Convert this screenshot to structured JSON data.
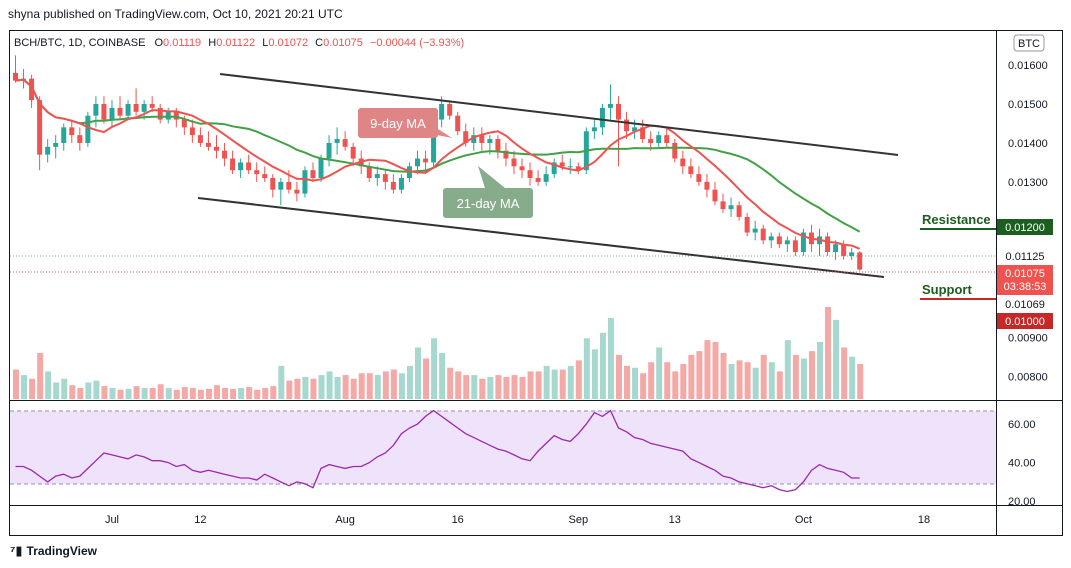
{
  "header": {
    "credit": "shyna published on TradingView.com, Oct 10, 2021 20:21 UTC"
  },
  "legend": {
    "symbol": "BCH/BTC, 1D, COINBASE",
    "open_label": "O",
    "open": "0.01119",
    "high_label": "H",
    "high": "0.01122",
    "low_label": "L",
    "low": "0.01072",
    "close_label": "C",
    "close": "0.01075",
    "change": "−0.00044 (−3.93%)"
  },
  "currency_badge": "BTC",
  "annotations": {
    "ma9": "9-day MA",
    "ma21": "21-day MA",
    "resistance": "Resistance",
    "support": "Support"
  },
  "price_labels": {
    "resistance": "0.01200",
    "ma_value": "0.01125",
    "last_price": "0.01075",
    "countdown": "03:38:53",
    "ma_value2": "0.01069",
    "support": "0.01000"
  },
  "footer": {
    "brand": "TradingView"
  },
  "colors": {
    "up": "#26a69a",
    "down": "#ef5350",
    "ma9": "#ef5350",
    "ma21": "#43a047",
    "trend": "#333333",
    "rsi": "#9c27b0",
    "rsi_band": "#ede1f7",
    "resistance": "#1b5e20",
    "support": "#c62828"
  },
  "chart_data": {
    "type": "candlestick",
    "title": "BCH/BTC, 1D, COINBASE",
    "x_tick_labels": [
      "Jul",
      "12",
      "Aug",
      "16",
      "Sep",
      "13",
      "Oct",
      "18"
    ],
    "y_tick_labels": [
      "0.01600",
      "0.01500",
      "0.01400",
      "0.01300",
      "0.00900",
      "0.00800"
    ],
    "ylim": [
      0.0074,
      0.0169
    ],
    "rsi_tick_labels": [
      "60.00",
      "40.00",
      "20.00"
    ],
    "rsi_lim": [
      18,
      72
    ],
    "rsi_bands": [
      70,
      30
    ],
    "candles": [
      {
        "o": 0.0158,
        "h": 0.01625,
        "l": 0.01555,
        "c": 0.0156
      },
      {
        "o": 0.0156,
        "h": 0.0159,
        "l": 0.0154,
        "c": 0.01565
      },
      {
        "o": 0.01565,
        "h": 0.01575,
        "l": 0.0149,
        "c": 0.0151
      },
      {
        "o": 0.0151,
        "h": 0.0152,
        "l": 0.0133,
        "c": 0.0137
      },
      {
        "o": 0.0137,
        "h": 0.0141,
        "l": 0.0135,
        "c": 0.0139
      },
      {
        "o": 0.0139,
        "h": 0.0142,
        "l": 0.0136,
        "c": 0.014
      },
      {
        "o": 0.014,
        "h": 0.0145,
        "l": 0.0138,
        "c": 0.0144
      },
      {
        "o": 0.0144,
        "h": 0.0146,
        "l": 0.014,
        "c": 0.0142
      },
      {
        "o": 0.0142,
        "h": 0.0144,
        "l": 0.0138,
        "c": 0.014
      },
      {
        "o": 0.014,
        "h": 0.0148,
        "l": 0.0139,
        "c": 0.0147
      },
      {
        "o": 0.0147,
        "h": 0.0152,
        "l": 0.0144,
        "c": 0.015
      },
      {
        "o": 0.015,
        "h": 0.0152,
        "l": 0.0145,
        "c": 0.0146
      },
      {
        "o": 0.0146,
        "h": 0.0151,
        "l": 0.0144,
        "c": 0.0149
      },
      {
        "o": 0.0149,
        "h": 0.0152,
        "l": 0.0146,
        "c": 0.0147
      },
      {
        "o": 0.0147,
        "h": 0.0151,
        "l": 0.0146,
        "c": 0.015
      },
      {
        "o": 0.015,
        "h": 0.0154,
        "l": 0.0147,
        "c": 0.0148
      },
      {
        "o": 0.0148,
        "h": 0.0151,
        "l": 0.0146,
        "c": 0.015
      },
      {
        "o": 0.015,
        "h": 0.0152,
        "l": 0.0148,
        "c": 0.0149
      },
      {
        "o": 0.0149,
        "h": 0.015,
        "l": 0.0145,
        "c": 0.0146
      },
      {
        "o": 0.0146,
        "h": 0.0149,
        "l": 0.0145,
        "c": 0.0148
      },
      {
        "o": 0.0148,
        "h": 0.0149,
        "l": 0.0144,
        "c": 0.0146
      },
      {
        "o": 0.0146,
        "h": 0.0147,
        "l": 0.0142,
        "c": 0.0144
      },
      {
        "o": 0.0144,
        "h": 0.0146,
        "l": 0.014,
        "c": 0.0142
      },
      {
        "o": 0.0142,
        "h": 0.0144,
        "l": 0.0139,
        "c": 0.014
      },
      {
        "o": 0.014,
        "h": 0.0143,
        "l": 0.0138,
        "c": 0.0139
      },
      {
        "o": 0.0139,
        "h": 0.0142,
        "l": 0.0136,
        "c": 0.0138
      },
      {
        "o": 0.0138,
        "h": 0.014,
        "l": 0.0134,
        "c": 0.0136
      },
      {
        "o": 0.0136,
        "h": 0.0138,
        "l": 0.0132,
        "c": 0.0133
      },
      {
        "o": 0.0133,
        "h": 0.0136,
        "l": 0.0131,
        "c": 0.0135
      },
      {
        "o": 0.0135,
        "h": 0.0137,
        "l": 0.0132,
        "c": 0.0133
      },
      {
        "o": 0.0133,
        "h": 0.0135,
        "l": 0.013,
        "c": 0.0132
      },
      {
        "o": 0.0132,
        "h": 0.0134,
        "l": 0.013,
        "c": 0.0131
      },
      {
        "o": 0.0131,
        "h": 0.0132,
        "l": 0.0126,
        "c": 0.0128
      },
      {
        "o": 0.0128,
        "h": 0.0131,
        "l": 0.0124,
        "c": 0.013
      },
      {
        "o": 0.013,
        "h": 0.0133,
        "l": 0.0127,
        "c": 0.0128
      },
      {
        "o": 0.0128,
        "h": 0.013,
        "l": 0.0125,
        "c": 0.0127
      },
      {
        "o": 0.0127,
        "h": 0.0134,
        "l": 0.0126,
        "c": 0.0133
      },
      {
        "o": 0.0133,
        "h": 0.0135,
        "l": 0.013,
        "c": 0.0131
      },
      {
        "o": 0.0131,
        "h": 0.0137,
        "l": 0.013,
        "c": 0.0136
      },
      {
        "o": 0.0136,
        "h": 0.0142,
        "l": 0.0134,
        "c": 0.014
      },
      {
        "o": 0.014,
        "h": 0.0144,
        "l": 0.0137,
        "c": 0.0141
      },
      {
        "o": 0.0141,
        "h": 0.0143,
        "l": 0.0138,
        "c": 0.0139
      },
      {
        "o": 0.0139,
        "h": 0.014,
        "l": 0.0134,
        "c": 0.0136
      },
      {
        "o": 0.0136,
        "h": 0.0138,
        "l": 0.0132,
        "c": 0.0134
      },
      {
        "o": 0.0134,
        "h": 0.0135,
        "l": 0.013,
        "c": 0.0131
      },
      {
        "o": 0.0131,
        "h": 0.0134,
        "l": 0.0129,
        "c": 0.0132
      },
      {
        "o": 0.0132,
        "h": 0.0133,
        "l": 0.0128,
        "c": 0.013
      },
      {
        "o": 0.013,
        "h": 0.0132,
        "l": 0.0127,
        "c": 0.0128
      },
      {
        "o": 0.0128,
        "h": 0.0132,
        "l": 0.0127,
        "c": 0.0131
      },
      {
        "o": 0.0131,
        "h": 0.0135,
        "l": 0.013,
        "c": 0.0134
      },
      {
        "o": 0.0134,
        "h": 0.0138,
        "l": 0.0132,
        "c": 0.0136
      },
      {
        "o": 0.0136,
        "h": 0.0138,
        "l": 0.0133,
        "c": 0.0135
      },
      {
        "o": 0.0135,
        "h": 0.0147,
        "l": 0.0134,
        "c": 0.0146
      },
      {
        "o": 0.0146,
        "h": 0.0152,
        "l": 0.0144,
        "c": 0.015
      },
      {
        "o": 0.015,
        "h": 0.0151,
        "l": 0.0146,
        "c": 0.0147
      },
      {
        "o": 0.0147,
        "h": 0.0148,
        "l": 0.0142,
        "c": 0.0143
      },
      {
        "o": 0.0143,
        "h": 0.0145,
        "l": 0.0139,
        "c": 0.014
      },
      {
        "o": 0.014,
        "h": 0.0144,
        "l": 0.0138,
        "c": 0.0142
      },
      {
        "o": 0.0142,
        "h": 0.0144,
        "l": 0.0138,
        "c": 0.014
      },
      {
        "o": 0.014,
        "h": 0.0142,
        "l": 0.0137,
        "c": 0.0141
      },
      {
        "o": 0.0141,
        "h": 0.0142,
        "l": 0.0136,
        "c": 0.0138
      },
      {
        "o": 0.0138,
        "h": 0.014,
        "l": 0.0134,
        "c": 0.0136
      },
      {
        "o": 0.0136,
        "h": 0.0138,
        "l": 0.0132,
        "c": 0.0134
      },
      {
        "o": 0.0134,
        "h": 0.0136,
        "l": 0.0131,
        "c": 0.0133
      },
      {
        "o": 0.0133,
        "h": 0.0135,
        "l": 0.0129,
        "c": 0.0131
      },
      {
        "o": 0.0131,
        "h": 0.0133,
        "l": 0.0129,
        "c": 0.013
      },
      {
        "o": 0.013,
        "h": 0.0134,
        "l": 0.0129,
        "c": 0.0132
      },
      {
        "o": 0.0132,
        "h": 0.0136,
        "l": 0.0131,
        "c": 0.0135
      },
      {
        "o": 0.0135,
        "h": 0.0137,
        "l": 0.0133,
        "c": 0.0134
      },
      {
        "o": 0.0134,
        "h": 0.0136,
        "l": 0.0132,
        "c": 0.0134
      },
      {
        "o": 0.0134,
        "h": 0.0135,
        "l": 0.0132,
        "c": 0.0133
      },
      {
        "o": 0.0133,
        "h": 0.0144,
        "l": 0.0132,
        "c": 0.0143
      },
      {
        "o": 0.0143,
        "h": 0.0146,
        "l": 0.0141,
        "c": 0.0144
      },
      {
        "o": 0.0144,
        "h": 0.015,
        "l": 0.0142,
        "c": 0.0149
      },
      {
        "o": 0.0149,
        "h": 0.0155,
        "l": 0.0146,
        "c": 0.015
      },
      {
        "o": 0.015,
        "h": 0.0152,
        "l": 0.0134,
        "c": 0.0146
      },
      {
        "o": 0.0146,
        "h": 0.0148,
        "l": 0.0141,
        "c": 0.0143
      },
      {
        "o": 0.0143,
        "h": 0.0146,
        "l": 0.0141,
        "c": 0.0144
      },
      {
        "o": 0.0144,
        "h": 0.0146,
        "l": 0.014,
        "c": 0.0141
      },
      {
        "o": 0.0141,
        "h": 0.0143,
        "l": 0.0138,
        "c": 0.014
      },
      {
        "o": 0.014,
        "h": 0.0143,
        "l": 0.0139,
        "c": 0.0142
      },
      {
        "o": 0.0142,
        "h": 0.0144,
        "l": 0.0139,
        "c": 0.014
      },
      {
        "o": 0.014,
        "h": 0.0141,
        "l": 0.0135,
        "c": 0.0136
      },
      {
        "o": 0.0136,
        "h": 0.0138,
        "l": 0.0132,
        "c": 0.0134
      },
      {
        "o": 0.0134,
        "h": 0.0136,
        "l": 0.0131,
        "c": 0.0132
      },
      {
        "o": 0.0132,
        "h": 0.0134,
        "l": 0.0129,
        "c": 0.013
      },
      {
        "o": 0.013,
        "h": 0.0132,
        "l": 0.0126,
        "c": 0.0128
      },
      {
        "o": 0.0128,
        "h": 0.013,
        "l": 0.0124,
        "c": 0.0125
      },
      {
        "o": 0.0125,
        "h": 0.0127,
        "l": 0.0122,
        "c": 0.0123
      },
      {
        "o": 0.0123,
        "h": 0.0126,
        "l": 0.0121,
        "c": 0.0124
      },
      {
        "o": 0.0124,
        "h": 0.0125,
        "l": 0.012,
        "c": 0.0121
      },
      {
        "o": 0.0121,
        "h": 0.0122,
        "l": 0.0116,
        "c": 0.0117
      },
      {
        "o": 0.0117,
        "h": 0.012,
        "l": 0.0115,
        "c": 0.0118
      },
      {
        "o": 0.0118,
        "h": 0.0119,
        "l": 0.0114,
        "c": 0.0115
      },
      {
        "o": 0.0115,
        "h": 0.0117,
        "l": 0.0113,
        "c": 0.0116
      },
      {
        "o": 0.0116,
        "h": 0.0117,
        "l": 0.0113,
        "c": 0.0114
      },
      {
        "o": 0.0114,
        "h": 0.0116,
        "l": 0.0112,
        "c": 0.0115
      },
      {
        "o": 0.0115,
        "h": 0.0116,
        "l": 0.0111,
        "c": 0.0112
      },
      {
        "o": 0.0112,
        "h": 0.0118,
        "l": 0.0111,
        "c": 0.0117
      },
      {
        "o": 0.0117,
        "h": 0.0119,
        "l": 0.0112,
        "c": 0.0114
      },
      {
        "o": 0.0114,
        "h": 0.0118,
        "l": 0.0111,
        "c": 0.0116
      },
      {
        "o": 0.0116,
        "h": 0.0117,
        "l": 0.0111,
        "c": 0.0112
      },
      {
        "o": 0.0112,
        "h": 0.0115,
        "l": 0.011,
        "c": 0.0114
      },
      {
        "o": 0.0114,
        "h": 0.0115,
        "l": 0.011,
        "c": 0.0111
      },
      {
        "o": 0.0111,
        "h": 0.0113,
        "l": 0.011,
        "c": 0.01119
      },
      {
        "o": 0.01119,
        "h": 0.01122,
        "l": 0.01072,
        "c": 0.01075
      }
    ],
    "volume": [
      0.32,
      0.26,
      0.22,
      0.5,
      0.3,
      0.18,
      0.22,
      0.15,
      0.12,
      0.18,
      0.2,
      0.14,
      0.12,
      0.1,
      0.11,
      0.14,
      0.12,
      0.12,
      0.16,
      0.12,
      0.1,
      0.13,
      0.12,
      0.1,
      0.11,
      0.15,
      0.12,
      0.11,
      0.12,
      0.13,
      0.1,
      0.12,
      0.14,
      0.36,
      0.2,
      0.22,
      0.24,
      0.22,
      0.26,
      0.3,
      0.24,
      0.26,
      0.22,
      0.28,
      0.28,
      0.26,
      0.3,
      0.32,
      0.28,
      0.36,
      0.56,
      0.44,
      0.66,
      0.5,
      0.34,
      0.3,
      0.26,
      0.26,
      0.22,
      0.24,
      0.26,
      0.24,
      0.26,
      0.24,
      0.3,
      0.3,
      0.36,
      0.32,
      0.32,
      0.36,
      0.42,
      0.66,
      0.54,
      0.72,
      0.88,
      0.48,
      0.36,
      0.34,
      0.28,
      0.4,
      0.56,
      0.4,
      0.3,
      0.38,
      0.48,
      0.52,
      0.64,
      0.62,
      0.5,
      0.38,
      0.42,
      0.4,
      0.34,
      0.48,
      0.4,
      0.3,
      0.64,
      0.48,
      0.44,
      0.52,
      0.62,
      1.0,
      0.86,
      0.56,
      0.46,
      0.38
    ],
    "rsi": [
      38,
      38,
      36,
      33,
      30,
      33,
      34,
      32,
      33,
      37,
      41,
      45,
      44,
      43,
      42,
      44,
      43,
      41,
      41,
      40,
      38,
      39,
      36,
      35,
      36,
      35,
      34,
      33,
      32,
      32,
      31,
      34,
      32,
      30,
      28,
      30,
      29,
      27,
      37,
      39,
      38,
      37,
      38,
      38,
      40,
      43,
      45,
      49,
      55,
      58,
      60,
      64,
      67,
      64,
      61,
      58,
      55,
      53,
      51,
      49,
      47,
      46,
      44,
      42,
      41,
      46,
      50,
      54,
      52,
      51,
      55,
      60,
      66,
      64,
      67,
      58,
      56,
      53,
      52,
      50,
      49,
      48,
      47,
      46,
      42,
      40,
      38,
      36,
      33,
      32,
      30,
      29,
      28,
      27,
      28,
      26,
      25,
      26,
      30,
      36,
      39,
      37,
      36,
      35,
      32,
      32
    ],
    "ma9_label": "9-day MA",
    "ma21_label": "21-day MA"
  }
}
